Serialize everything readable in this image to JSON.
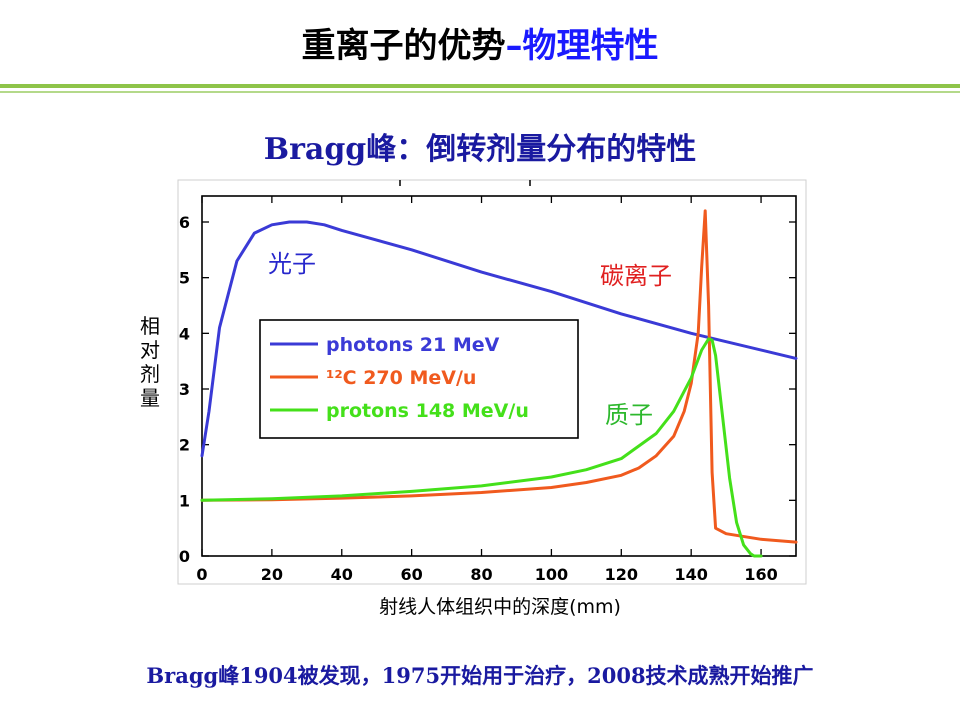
{
  "slide": {
    "title_part1": "重离子的优势",
    "title_part2": "–物理特性",
    "subtitle": "Bragg峰：倒转剂量分布的特性",
    "footer": "Bragg峰1904被发现，1975开始用于治疗，2008技术成熟开始推广"
  },
  "chart_data": {
    "type": "line",
    "xlabel": "射线人体组织中的深度(mm)",
    "ylabel": "相对剂量",
    "xlim": [
      0,
      170
    ],
    "ylim": [
      0,
      6.5
    ],
    "x_ticks": [
      "0",
      "20",
      "40",
      "60",
      "80",
      "100",
      "120",
      "140",
      "160"
    ],
    "y_ticks": [
      "0",
      "1",
      "2",
      "3",
      "4",
      "5",
      "6"
    ],
    "legend": [
      "photons 21 MeV",
      "¹²C 270 MeV/u",
      "protons 148 MeV/u"
    ],
    "annotations": {
      "photon": "光子",
      "carbon": "碳离子",
      "proton": "质子"
    },
    "colors": {
      "photon": "#3a3ad6",
      "carbon": "#f05a1e",
      "proton": "#44e01a",
      "photon_label": "#2727cc",
      "carbon_label": "#e02020",
      "proton_label": "#2db82d"
    },
    "series": [
      {
        "name": "photons 21 MeV",
        "x": [
          0,
          2,
          5,
          10,
          15,
          20,
          25,
          30,
          35,
          40,
          60,
          80,
          100,
          120,
          140,
          170
        ],
        "y": [
          1.8,
          2.6,
          4.1,
          5.3,
          5.8,
          5.95,
          6.0,
          6.0,
          5.95,
          5.85,
          5.5,
          5.1,
          4.75,
          4.35,
          4.0,
          3.55
        ]
      },
      {
        "name": "¹²C 270 MeV/u",
        "x": [
          0,
          20,
          40,
          60,
          80,
          100,
          110,
          120,
          125,
          130,
          135,
          138,
          140,
          142,
          143,
          144,
          145,
          146,
          147,
          150,
          160,
          170
        ],
        "y": [
          1.0,
          1.01,
          1.04,
          1.08,
          1.14,
          1.23,
          1.32,
          1.45,
          1.58,
          1.8,
          2.15,
          2.6,
          3.1,
          4.0,
          5.2,
          6.2,
          4.5,
          1.5,
          0.5,
          0.4,
          0.3,
          0.25
        ]
      },
      {
        "name": "protons 148 MeV/u",
        "x": [
          0,
          20,
          40,
          60,
          80,
          100,
          110,
          120,
          130,
          135,
          140,
          143,
          145,
          146,
          147,
          149,
          151,
          153,
          155,
          157,
          158,
          160
        ],
        "y": [
          1.0,
          1.03,
          1.08,
          1.16,
          1.26,
          1.42,
          1.55,
          1.75,
          2.2,
          2.6,
          3.2,
          3.7,
          3.9,
          3.88,
          3.6,
          2.5,
          1.4,
          0.6,
          0.2,
          0.04,
          0.0,
          0.0
        ]
      }
    ]
  }
}
